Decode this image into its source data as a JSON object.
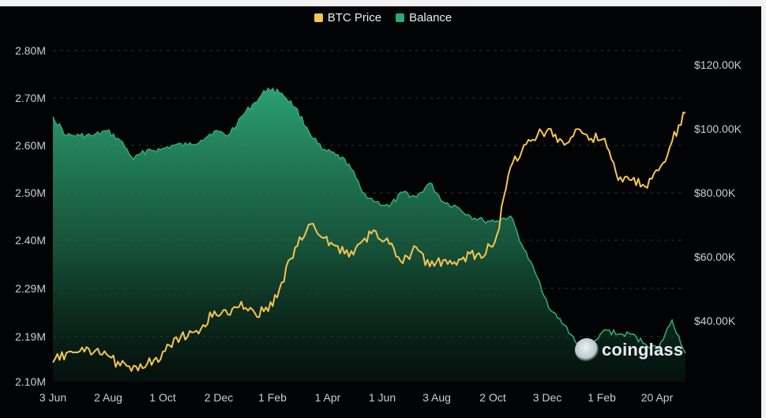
{
  "legend": {
    "price_label": "BTC Price",
    "balance_label": "Balance"
  },
  "watermark": "coinglass",
  "colors": {
    "price": "#f6c453",
    "balance": "#2ea878",
    "background": "#020305",
    "grid": "#3a3f47",
    "text": "#c9ced6"
  },
  "chart_data": {
    "type": "area",
    "title": "",
    "x_tick_labels": [
      "3 Jun",
      "2 Aug",
      "1 Oct",
      "2 Dec",
      "1 Feb",
      "1 Apr",
      "1 Jun",
      "3 Aug",
      "2 Oct",
      "3 Dec",
      "1 Feb",
      "20 Apr"
    ],
    "left_axis": {
      "ticks": [
        2.1,
        2.19,
        2.29,
        2.4,
        2.5,
        2.6,
        2.7,
        2.8
      ],
      "tick_labels": [
        "2.10M",
        "2.19M",
        "2.29M",
        "2.40M",
        "2.50M",
        "2.60M",
        "2.70M",
        "2.80M"
      ],
      "ylim": [
        2.1,
        2.8
      ]
    },
    "right_axis": {
      "ticks": [
        40000,
        60000,
        80000,
        100000,
        120000
      ],
      "tick_labels": [
        "$40.00K",
        "$60.00K",
        "$80.00K",
        "$100.00K",
        "$120.00K"
      ],
      "ylim": [
        21000,
        124500
      ]
    },
    "grid": true,
    "legend_position": "top-center",
    "series": [
      {
        "name": "Balance",
        "axis": "left",
        "x": [
          "3 Jun",
          "17 Jun",
          "1 Jul",
          "15 Jul",
          "2 Aug",
          "16 Aug",
          "1 Sep",
          "15 Sep",
          "1 Oct",
          "15 Oct",
          "1 Nov",
          "15 Nov",
          "2 Dec",
          "16 Dec",
          "1 Jan",
          "15 Jan",
          "1 Feb",
          "15 Feb",
          "1 Mar",
          "15 Mar",
          "1 Apr",
          "15 Apr",
          "1 May",
          "15 May",
          "1 Jun",
          "15 Jun",
          "1 Jul",
          "15 Jul",
          "3 Aug",
          "17 Aug",
          "1 Sep",
          "15 Sep",
          "2 Oct",
          "16 Oct",
          "1 Nov",
          "15 Nov",
          "3 Dec",
          "17 Dec",
          "1 Jan",
          "15 Jan",
          "1 Feb",
          "15 Feb",
          "1 Mar",
          "15 Mar",
          "1 Apr",
          "20 Apr",
          "1 May",
          "10 May"
        ],
        "values": [
          2.66,
          2.62,
          2.62,
          2.62,
          2.63,
          2.61,
          2.57,
          2.59,
          2.59,
          2.6,
          2.6,
          2.61,
          2.63,
          2.62,
          2.66,
          2.69,
          2.72,
          2.71,
          2.68,
          2.63,
          2.59,
          2.58,
          2.56,
          2.5,
          2.48,
          2.47,
          2.5,
          2.49,
          2.52,
          2.48,
          2.47,
          2.45,
          2.44,
          2.44,
          2.45,
          2.38,
          2.32,
          2.25,
          2.22,
          2.18,
          2.17,
          2.21,
          2.2,
          2.2,
          2.18,
          2.17,
          2.23,
          2.16
        ]
      },
      {
        "name": "BTC Price",
        "axis": "right",
        "x": [
          "3 Jun",
          "17 Jun",
          "1 Jul",
          "15 Jul",
          "2 Aug",
          "16 Aug",
          "1 Sep",
          "15 Sep",
          "1 Oct",
          "15 Oct",
          "1 Nov",
          "15 Nov",
          "2 Dec",
          "16 Dec",
          "1 Jan",
          "15 Jan",
          "1 Feb",
          "15 Feb",
          "1 Mar",
          "15 Mar",
          "1 Apr",
          "15 Apr",
          "1 May",
          "15 May",
          "1 Jun",
          "15 Jun",
          "1 Jul",
          "15 Jul",
          "3 Aug",
          "17 Aug",
          "1 Sep",
          "15 Sep",
          "2 Oct",
          "16 Oct",
          "1 Nov",
          "15 Nov",
          "3 Dec",
          "17 Dec",
          "1 Jan",
          "15 Jan",
          "1 Feb",
          "15 Feb",
          "1 Mar",
          "15 Mar",
          "1 Apr",
          "20 Apr",
          "1 May",
          "10 May"
        ],
        "values": [
          27000,
          30000,
          30500,
          30000,
          29500,
          26000,
          26000,
          26500,
          28000,
          34500,
          35000,
          37500,
          43000,
          42000,
          46000,
          42500,
          43000,
          52000,
          63000,
          70000,
          66000,
          63500,
          60000,
          65000,
          68000,
          64000,
          58000,
          63000,
          57000,
          59000,
          57500,
          61000,
          60000,
          67000,
          88000,
          95000,
          98000,
          100000,
          95000,
          100000,
          97000,
          97000,
          84000,
          84000,
          82000,
          87000,
          96000,
          105000
        ]
      }
    ]
  }
}
